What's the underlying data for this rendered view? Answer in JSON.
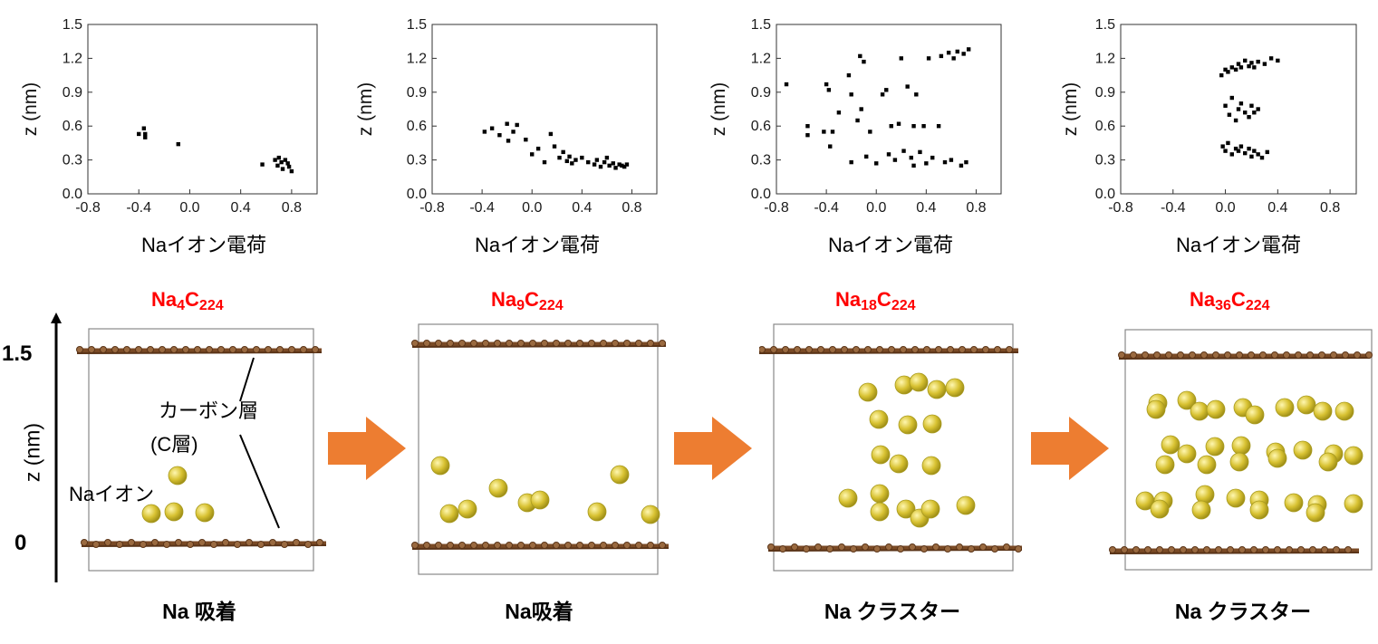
{
  "chart_data": [
    {
      "type": "scatter",
      "xlabel": "Naイオン電荷",
      "ylabel": "z (nm)",
      "xlim": [
        -0.8,
        1.0
      ],
      "ylim": [
        0.0,
        1.5
      ],
      "xticks": [
        "-0.8",
        "-0.4",
        "0.0",
        "0.4",
        "0.8"
      ],
      "yticks": [
        "0.0",
        "0.3",
        "0.6",
        "0.9",
        "1.2",
        "1.5"
      ],
      "x": [
        -0.4,
        -0.36,
        -0.35,
        -0.35,
        -0.09,
        0.57,
        0.67,
        0.69,
        0.7,
        0.72,
        0.73,
        0.75,
        0.77,
        0.78,
        0.8
      ],
      "y": [
        0.53,
        0.58,
        0.53,
        0.5,
        0.44,
        0.26,
        0.3,
        0.25,
        0.32,
        0.28,
        0.22,
        0.3,
        0.27,
        0.24,
        0.2
      ]
    },
    {
      "type": "scatter",
      "xlabel": "Naイオン電荷",
      "ylabel": "z (nm)",
      "xlim": [
        -0.8,
        1.0
      ],
      "ylim": [
        0.0,
        1.5
      ],
      "xticks": [
        "-0.8",
        "-0.4",
        "0.0",
        "0.4",
        "0.8"
      ],
      "yticks": [
        "0.0",
        "0.3",
        "0.6",
        "0.9",
        "1.2",
        "1.5"
      ],
      "x": [
        -0.38,
        -0.32,
        -0.26,
        -0.2,
        -0.19,
        -0.15,
        -0.12,
        -0.05,
        0.0,
        0.05,
        0.1,
        0.15,
        0.18,
        0.22,
        0.25,
        0.28,
        0.3,
        0.32,
        0.35,
        0.4,
        0.45,
        0.5,
        0.52,
        0.55,
        0.58,
        0.6,
        0.62,
        0.65,
        0.67,
        0.7,
        0.72,
        0.74,
        0.76
      ],
      "y": [
        0.55,
        0.58,
        0.52,
        0.62,
        0.47,
        0.55,
        0.61,
        0.48,
        0.35,
        0.4,
        0.28,
        0.53,
        0.42,
        0.32,
        0.37,
        0.29,
        0.33,
        0.27,
        0.3,
        0.32,
        0.28,
        0.26,
        0.3,
        0.24,
        0.28,
        0.32,
        0.25,
        0.27,
        0.23,
        0.26,
        0.25,
        0.24,
        0.26
      ]
    },
    {
      "type": "scatter",
      "xlabel": "Naイオン電荷",
      "ylabel": "z (nm)",
      "xlim": [
        -0.8,
        1.0
      ],
      "ylim": [
        0.0,
        1.5
      ],
      "xticks": [
        "-0.8",
        "-0.4",
        "0.0",
        "0.4",
        "0.8"
      ],
      "yticks": [
        "0.0",
        "0.3",
        "0.6",
        "0.9",
        "1.2",
        "1.5"
      ],
      "x": [
        -0.72,
        -0.55,
        -0.55,
        -0.42,
        -0.4,
        -0.38,
        -0.37,
        -0.35,
        -0.3,
        -0.22,
        -0.2,
        -0.15,
        -0.13,
        -0.12,
        -0.1,
        -0.08,
        -0.05,
        0.0,
        0.05,
        0.08,
        0.1,
        0.12,
        0.15,
        0.18,
        0.2,
        0.22,
        0.25,
        0.28,
        0.3,
        0.32,
        0.35,
        0.38,
        0.4,
        0.42,
        0.45,
        0.5,
        0.52,
        0.55,
        0.58,
        0.6,
        0.62,
        0.65,
        0.68,
        0.7,
        0.72,
        0.74,
        -0.2,
        0.3
      ],
      "y": [
        0.97,
        0.6,
        0.52,
        0.55,
        0.97,
        0.92,
        0.42,
        0.55,
        0.72,
        1.05,
        0.28,
        0.65,
        1.22,
        0.75,
        1.17,
        0.33,
        0.55,
        0.27,
        0.88,
        0.92,
        0.35,
        0.6,
        0.3,
        0.62,
        1.2,
        0.38,
        0.95,
        0.32,
        0.6,
        0.88,
        0.37,
        0.6,
        0.27,
        1.2,
        0.32,
        0.6,
        1.22,
        0.28,
        1.25,
        0.3,
        1.2,
        1.26,
        0.25,
        1.24,
        0.28,
        1.28,
        0.88,
        0.25
      ]
    },
    {
      "type": "scatter",
      "xlabel": "Naイオン電荷",
      "ylabel": "z (nm)",
      "xlim": [
        -0.8,
        1.0
      ],
      "ylim": [
        0.0,
        1.5
      ],
      "xticks": [
        "-0.8",
        "-0.4",
        "0.0",
        "0.4",
        "0.8"
      ],
      "yticks": [
        "0.0",
        "0.3",
        "0.6",
        "0.9",
        "1.2",
        "1.5"
      ],
      "x": [
        -0.03,
        0.0,
        0.02,
        0.05,
        0.08,
        0.1,
        0.12,
        0.15,
        0.18,
        0.2,
        0.22,
        0.25,
        0.3,
        0.35,
        0.4,
        0.0,
        0.03,
        0.05,
        0.08,
        0.1,
        0.12,
        0.15,
        0.18,
        0.2,
        0.22,
        0.25,
        -0.02,
        0.0,
        0.02,
        0.05,
        0.08,
        0.1,
        0.12,
        0.15,
        0.18,
        0.2,
        0.22,
        0.25,
        0.28,
        0.32
      ],
      "y": [
        1.05,
        1.1,
        1.08,
        1.12,
        1.1,
        1.15,
        1.12,
        1.18,
        1.13,
        1.16,
        1.12,
        1.17,
        1.15,
        1.2,
        1.18,
        0.78,
        0.7,
        0.85,
        0.65,
        0.75,
        0.8,
        0.72,
        0.68,
        0.78,
        0.72,
        0.75,
        0.42,
        0.38,
        0.45,
        0.35,
        0.4,
        0.38,
        0.42,
        0.36,
        0.4,
        0.33,
        0.38,
        0.35,
        0.32,
        0.37
      ]
    }
  ],
  "formulas": [
    {
      "el": "Na",
      "n1": "4",
      "c": "C",
      "n2": "224"
    },
    {
      "el": "Na",
      "n1": "9",
      "c": "C",
      "n2": "224"
    },
    {
      "el": "Na",
      "n1": "18",
      "c": "C",
      "n2": "224"
    },
    {
      "el": "Na",
      "n1": "36",
      "c": "C",
      "n2": "224"
    }
  ],
  "captions": [
    "Na 吸着",
    "Na吸着",
    "Na クラスター",
    "Na クラスター"
  ],
  "annotations": {
    "carbon_layer": "カーボン層",
    "c_layer": "(C層)",
    "na_ion": "Naイオン"
  },
  "z_axis": {
    "label": "z (nm)",
    "top": "1.5",
    "bottom": "0"
  },
  "colors": {
    "formula": "#ff0000",
    "arrow": "#ed7d31",
    "carbon": "#7a4a25",
    "sodium": "#d8c232",
    "points": "#000000"
  }
}
